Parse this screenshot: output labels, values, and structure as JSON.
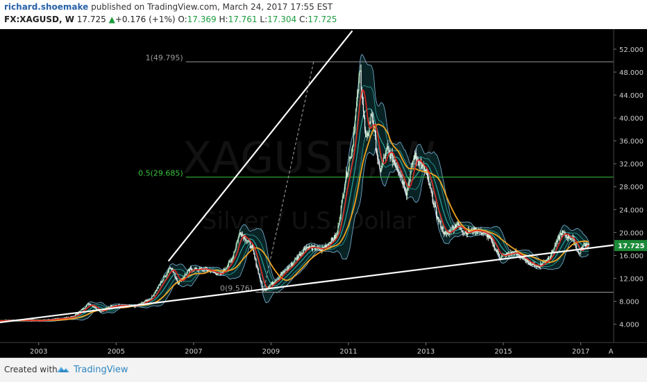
{
  "header": {
    "author": "richard.shoemake",
    "published": " published on TradingView.com, March 24, 2017 17:55 EST",
    "symbol": "FX:XAGUSD, W",
    "last": "17.725",
    "change_arrow": "▲",
    "change": "+0.176 (+1%)",
    "o_label": "O:",
    "o_value": "17.369",
    "h_label": "H:",
    "h_value": "17.761",
    "l_label": "L:",
    "l_value": "17.304",
    "c_label": "C:",
    "c_value": "17.725"
  },
  "watermark": {
    "symbol": "XAGUSD, W",
    "name": "Silver / U.S. Dollar"
  },
  "footer": {
    "created": "Created with",
    "brand": "TradingView"
  },
  "colors": {
    "background": "#000000",
    "candle_up": "#bdecc4",
    "candle_down": "#f2f2f2",
    "ma_fast": "#e3231b",
    "ma_slow": "#f0a320",
    "band_inner": "#2aa9a0",
    "band_outer": "#7fb6d9",
    "fib_full": "#9a9a9a",
    "fib_half": "#38c43d",
    "trendline": "#ffffff",
    "price_badge": "#1c8a38",
    "brand": "#2e86c1"
  },
  "chart_data": {
    "type": "line",
    "symbol": "FX:XAGUSD",
    "timeframe": "W",
    "x_ticks": [
      "2003",
      "2005",
      "2007",
      "2009",
      "2011",
      "2013",
      "2015",
      "2017"
    ],
    "x_extra_tick": "A",
    "y_ticks": [
      "52.000",
      "48.000",
      "44.000",
      "40.000",
      "36.000",
      "32.000",
      "28.000",
      "24.000",
      "20.000",
      "16.000",
      "12.000",
      "8.000",
      "4.000"
    ],
    "ylim": [
      0.8,
      55.5
    ],
    "xlim": [
      2002.0,
      2017.85
    ],
    "last_price_label": "17.725",
    "last_price": 17.725,
    "price_series": [
      [
        2002.0,
        4.6
      ],
      [
        2002.5,
        4.7
      ],
      [
        2003.0,
        4.6
      ],
      [
        2003.5,
        4.9
      ],
      [
        2003.9,
        5.3
      ],
      [
        2004.3,
        7.6
      ],
      [
        2004.6,
        6.2
      ],
      [
        2004.9,
        7.3
      ],
      [
        2005.5,
        7.1
      ],
      [
        2005.9,
        8.5
      ],
      [
        2006.3,
        12.8
      ],
      [
        2006.4,
        14.2
      ],
      [
        2006.6,
        11.2
      ],
      [
        2006.9,
        13.5
      ],
      [
        2007.3,
        13.6
      ],
      [
        2007.7,
        12.6
      ],
      [
        2008.0,
        15.5
      ],
      [
        2008.2,
        20.2
      ],
      [
        2008.5,
        17.5
      ],
      [
        2008.8,
        9.8
      ],
      [
        2009.0,
        11.0
      ],
      [
        2009.5,
        14.2
      ],
      [
        2009.9,
        17.5
      ],
      [
        2010.3,
        17.0
      ],
      [
        2010.7,
        19.5
      ],
      [
        2010.9,
        28.5
      ],
      [
        2011.1,
        35.0
      ],
      [
        2011.3,
        48.5
      ],
      [
        2011.45,
        35.5
      ],
      [
        2011.6,
        41.0
      ],
      [
        2011.8,
        30.5
      ],
      [
        2012.0,
        34.5
      ],
      [
        2012.3,
        31.0
      ],
      [
        2012.5,
        27.0
      ],
      [
        2012.7,
        33.5
      ],
      [
        2013.0,
        30.5
      ],
      [
        2013.3,
        22.5
      ],
      [
        2013.5,
        19.5
      ],
      [
        2013.8,
        21.5
      ],
      [
        2014.0,
        20.0
      ],
      [
        2014.3,
        20.5
      ],
      [
        2014.6,
        19.5
      ],
      [
        2014.9,
        15.8
      ],
      [
        2015.3,
        16.5
      ],
      [
        2015.6,
        15.0
      ],
      [
        2015.9,
        14.0
      ],
      [
        2016.2,
        15.8
      ],
      [
        2016.5,
        20.0
      ],
      [
        2016.8,
        18.8
      ],
      [
        2016.95,
        16.2
      ],
      [
        2017.1,
        18.1
      ],
      [
        2017.23,
        17.7
      ]
    ],
    "annotations": [
      {
        "type": "fib_level",
        "label": "1(49.795)",
        "value": 49.795
      },
      {
        "type": "fib_level",
        "label": "0.5(29.685)",
        "value": 29.685
      },
      {
        "type": "fib_level",
        "label": "0(9.576)",
        "value": 9.576
      }
    ],
    "trendlines": [
      {
        "name": "upper",
        "from": [
          2006.35,
          15.0
        ],
        "to": [
          2011.1,
          55.2
        ]
      },
      {
        "name": "lower",
        "from": [
          2002.0,
          4.3
        ],
        "to": [
          2017.85,
          17.8
        ]
      },
      {
        "name": "fib-dashed",
        "from": [
          2008.8,
          9.6
        ],
        "to": [
          2010.1,
          49.8
        ]
      }
    ]
  }
}
